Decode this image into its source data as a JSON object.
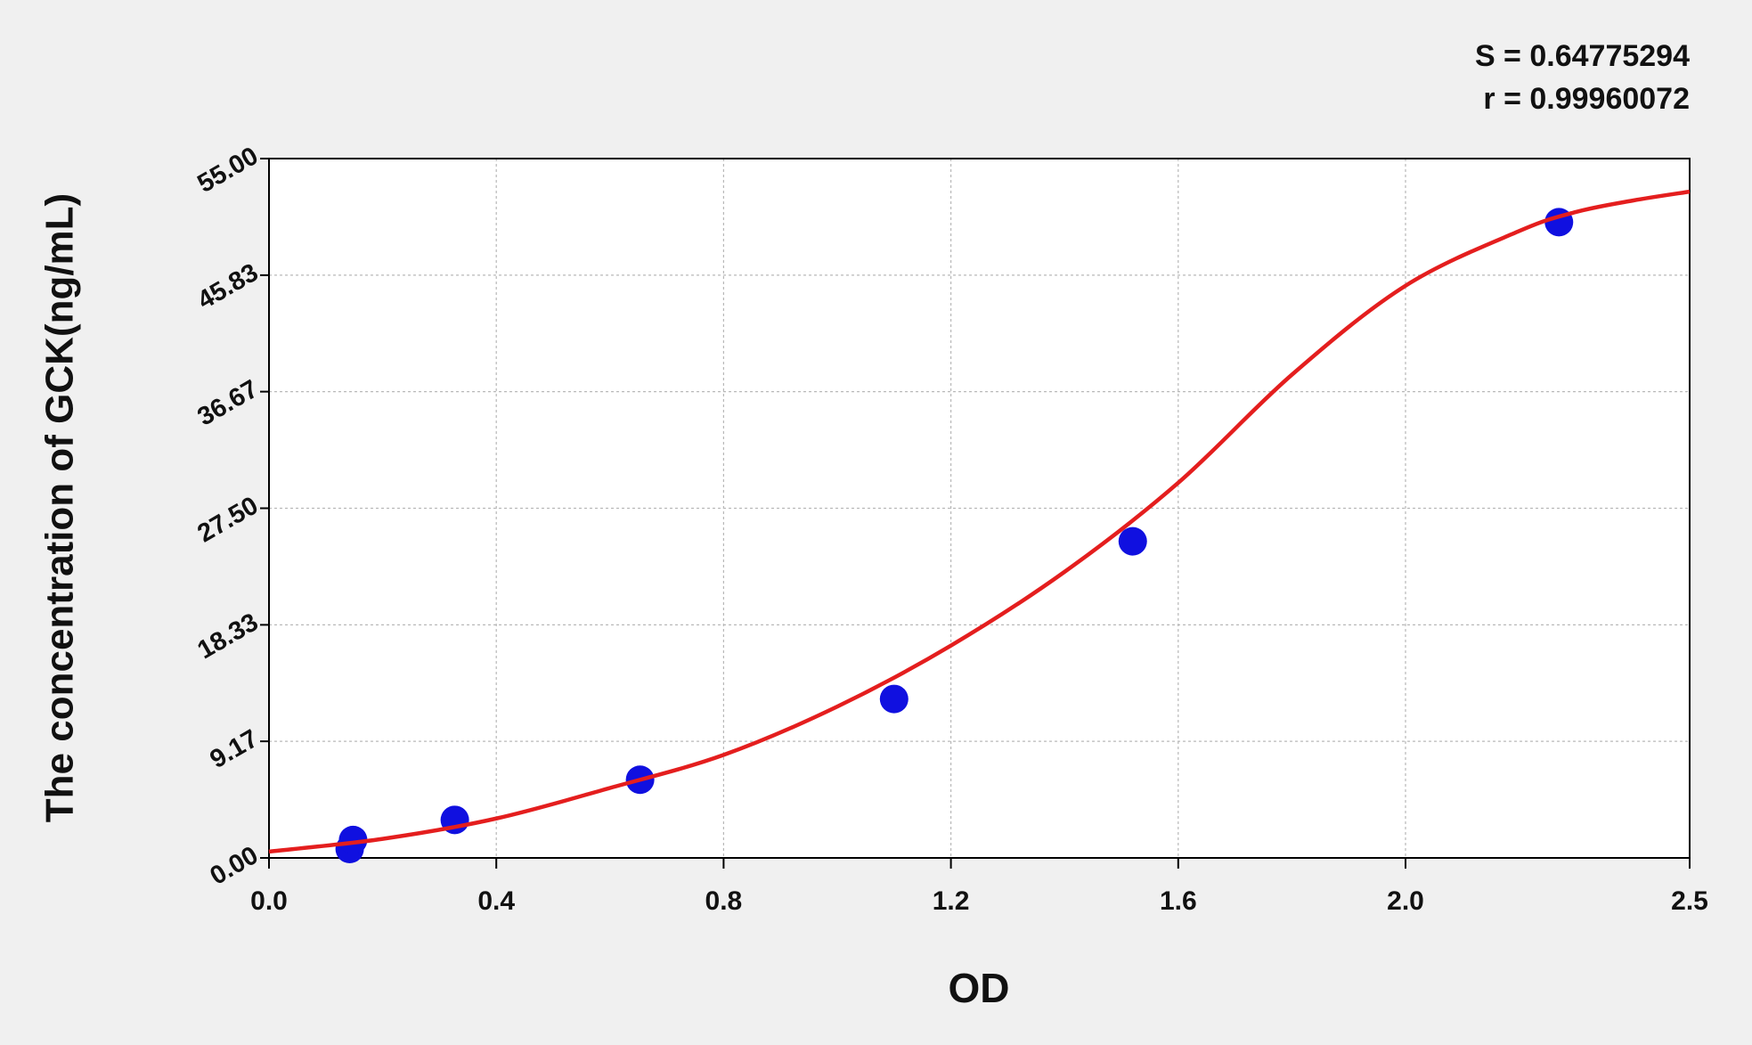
{
  "chart_data": {
    "type": "scatter",
    "x_label": "OD",
    "y_label": "The concentration of GCK(ng/mL)",
    "annotations": [
      "S = 0.64775294",
      "r = 0.99960072"
    ],
    "xlim": [
      0,
      2.5
    ],
    "ylim": [
      0,
      55
    ],
    "xticks": [
      {
        "value": 0,
        "label": "0.0"
      },
      0.4,
      0.8,
      1.2,
      1.6,
      {
        "value": 2,
        "label": "2.0"
      },
      2.5
    ],
    "yticks": [
      {
        "value": 0,
        "label": "0.00"
      },
      9.17,
      18.33,
      {
        "value": 27.5,
        "label": "27.50"
      },
      36.67,
      45.83,
      {
        "value": 55,
        "label": "55.00"
      }
    ],
    "grid": true,
    "series": [
      {
        "mode": "markers",
        "color": "#1010e0",
        "x": [
          0.142,
          0.148,
          0.327,
          0.653,
          1.1,
          1.52,
          2.27
        ],
        "values": [
          0.7,
          1.41,
          2.99,
          6.15,
          12.5,
          24.9,
          50.0
        ]
      },
      {
        "mode": "line",
        "color": "#e41e1e",
        "x": [
          0,
          0.2,
          0.4,
          0.6,
          0.8,
          1.0,
          1.2,
          1.4,
          1.6,
          1.8,
          2.0,
          2.2,
          2.3,
          2.4,
          2.5
        ],
        "values": [
          0.5,
          1.5,
          3.1,
          5.5,
          8.1,
          11.9,
          16.7,
          22.5,
          29.5,
          38.0,
          45.0,
          49.3,
          50.8,
          51.7,
          52.4
        ]
      }
    ]
  }
}
